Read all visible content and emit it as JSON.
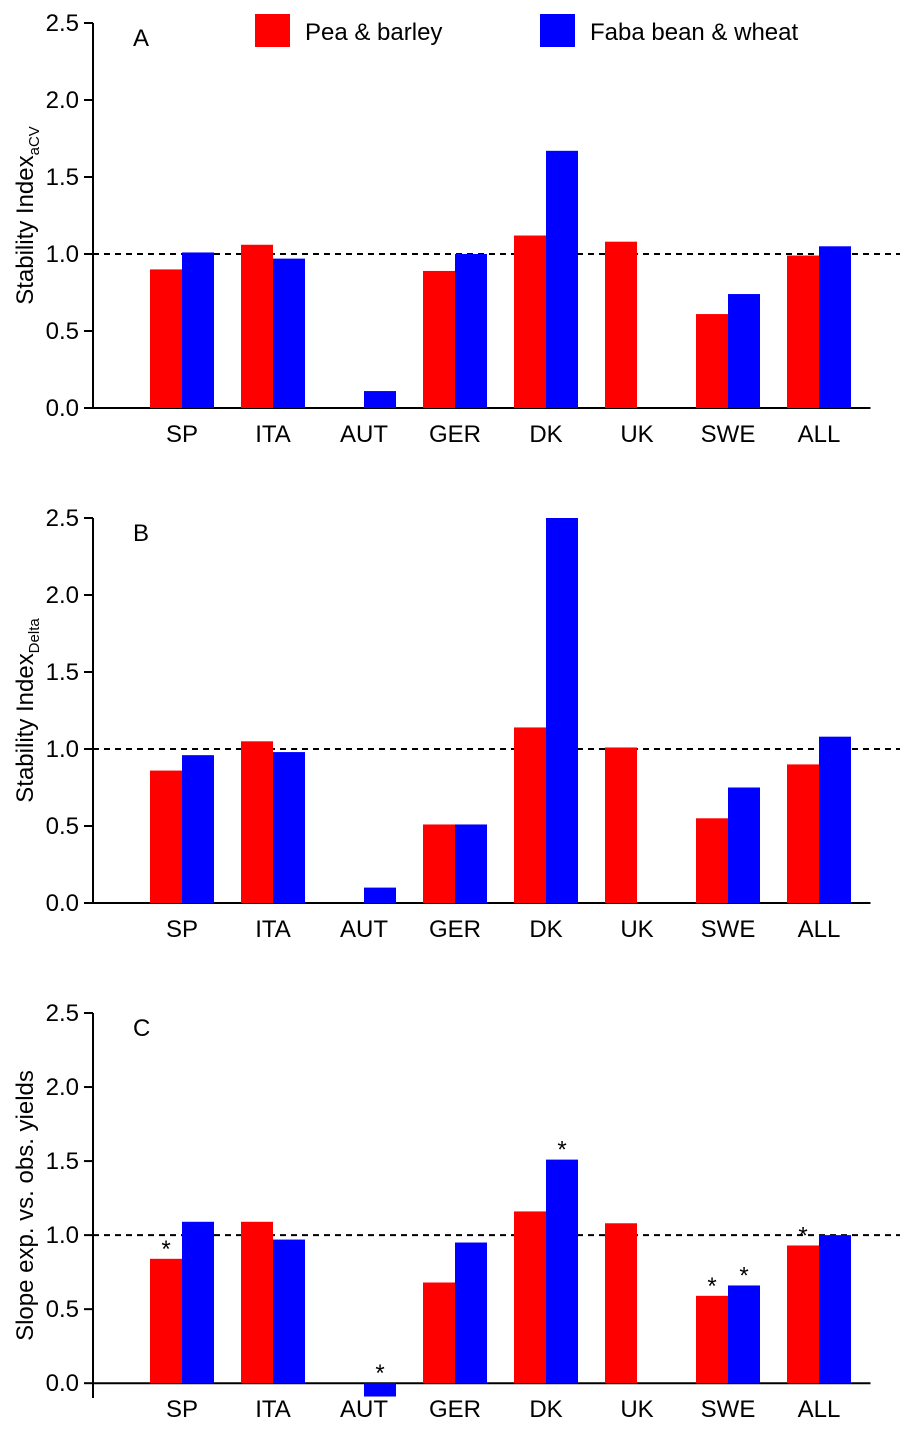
{
  "chart_data": [
    {
      "type": "bar",
      "panel_label": "A",
      "ylabel": "Stability Index",
      "ylabel_sub": "aCV",
      "categories": [
        "SP",
        "ITA",
        "AUT",
        "GER",
        "DK",
        "UK",
        "SWE",
        "ALL"
      ],
      "series": [
        {
          "name": "Pea & barley",
          "color": "#ff0000",
          "values": [
            0.9,
            1.06,
            null,
            0.89,
            1.12,
            1.08,
            0.61,
            0.99
          ]
        },
        {
          "name": "Faba bean & wheat",
          "color": "#0000ff",
          "values": [
            1.01,
            0.97,
            0.11,
            1.0,
            1.67,
            null,
            0.74,
            1.05
          ]
        }
      ],
      "ylim": [
        0,
        2.5
      ],
      "yticks": [
        {
          "value": 0,
          "label": "0.0"
        },
        0.5,
        {
          "value": 1,
          "label": "1.0"
        },
        1.5,
        {
          "value": 2,
          "label": "2.0"
        },
        2.5
      ],
      "reference_line": 1,
      "legend": true
    },
    {
      "type": "bar",
      "panel_label": "B",
      "ylabel": "Stability Index",
      "ylabel_sub": "Delta",
      "categories": [
        "SP",
        "ITA",
        "AUT",
        "GER",
        "DK",
        "UK",
        "SWE",
        "ALL"
      ],
      "series": [
        {
          "color": "#ff0000",
          "values": [
            0.86,
            1.05,
            null,
            0.51,
            1.14,
            1.01,
            0.55,
            0.9
          ]
        },
        {
          "color": "#0000ff",
          "values": [
            0.96,
            0.98,
            0.1,
            0.51,
            2.5,
            null,
            0.75,
            1.08
          ]
        }
      ],
      "ylim": [
        0,
        2.5
      ],
      "yticks": [
        {
          "value": 0,
          "label": "0.0"
        },
        0.5,
        {
          "value": 1,
          "label": "1.0"
        },
        1.5,
        {
          "value": 2,
          "label": "2.0"
        },
        2.5
      ],
      "reference_line": 1,
      "legend": false
    },
    {
      "type": "bar",
      "panel_label": "C",
      "ylabel": "Slope exp. vs. obs. yields",
      "categories": [
        "SP",
        "ITA",
        "AUT",
        "GER",
        "DK",
        "UK",
        "SWE",
        "ALL"
      ],
      "series": [
        {
          "color": "#ff0000",
          "values": [
            0.84,
            1.09,
            null,
            0.68,
            1.16,
            1.08,
            0.59,
            0.93
          ],
          "markers": [
            "*",
            null,
            null,
            null,
            null,
            null,
            "*",
            "*"
          ]
        },
        {
          "color": "#0000ff",
          "values": [
            1.09,
            0.97,
            -0.09,
            0.95,
            1.51,
            null,
            0.66,
            1.0
          ],
          "markers": [
            null,
            null,
            "*",
            null,
            "*",
            null,
            "*",
            null
          ]
        }
      ],
      "ylim": [
        -0.1,
        2.5
      ],
      "yticks": [
        {
          "value": 0,
          "label": "0.0"
        },
        0.5,
        {
          "value": 1,
          "label": "1.0"
        },
        1.5,
        {
          "value": 2,
          "label": "2.0"
        },
        2.5
      ],
      "reference_line": 1,
      "legend": false
    }
  ]
}
